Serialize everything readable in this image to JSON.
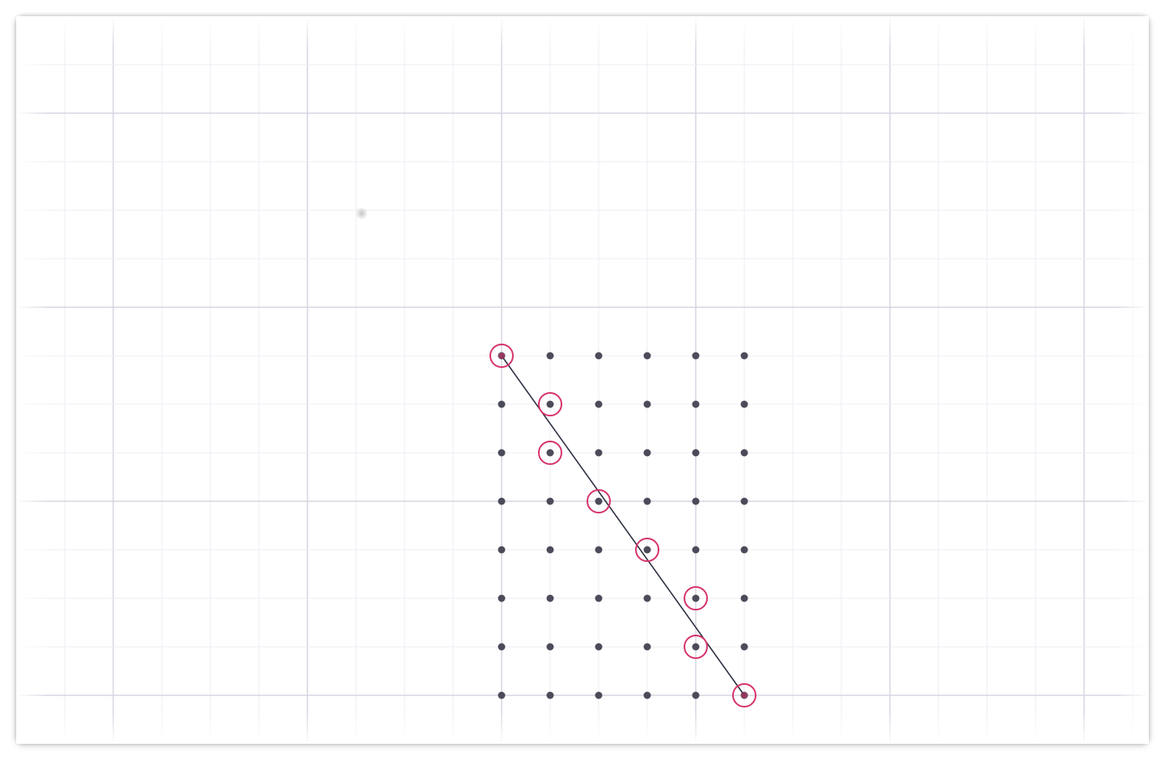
{
  "diagram": {
    "type": "pixel-line-rasterization",
    "lattice": {
      "columns": 6,
      "rows": 8
    },
    "line_segment": {
      "start": [
        0,
        0
      ],
      "end": [
        5,
        7
      ]
    },
    "highlighted_pixels": [
      [
        0,
        0
      ],
      [
        1,
        1
      ],
      [
        1,
        2
      ],
      [
        2,
        3
      ],
      [
        3,
        4
      ],
      [
        4,
        5
      ],
      [
        4,
        6
      ],
      [
        5,
        7
      ]
    ],
    "colors": {
      "background": "#ffffff",
      "minor_grid": "#eeeef4",
      "major_grid": "#d6d6e2",
      "dot": "#4b4b5a",
      "line": "#2d3142",
      "highlight_ring": "#d6336c"
    }
  }
}
